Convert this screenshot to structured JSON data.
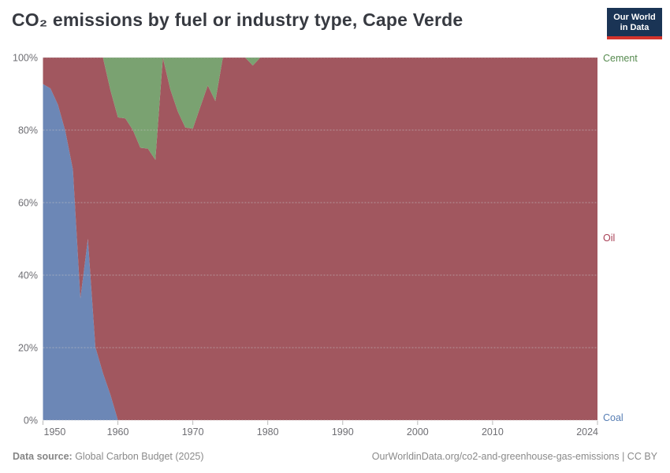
{
  "header": {
    "title": "CO₂ emissions by fuel or industry type, Cape Verde",
    "logo": {
      "line1": "Our World",
      "line2": "in Data",
      "bg_color": "#1a3455",
      "bar_color": "#d4342c"
    }
  },
  "legend": {
    "items": [
      {
        "label": "Cement",
        "label_color": "#568a4f"
      },
      {
        "label": "Oil",
        "label_color": "#a83f55"
      },
      {
        "label": "Coal",
        "label_color": "#577eb4"
      }
    ]
  },
  "footer": {
    "source_label": "Data source:",
    "source_text": " Global Carbon Budget (2025)",
    "credit_text": "OurWorldinData.org/co2-and-greenhouse-gas-emissions | CC BY"
  },
  "chart_data": {
    "type": "area",
    "stacked": true,
    "percent_stacked": true,
    "title": "CO₂ emissions by fuel or industry type, Cape Verde",
    "xlabel": "",
    "ylabel": "",
    "ylim": [
      0,
      100
    ],
    "grid": "dashed-horizontal",
    "legend_position": "right",
    "x": [
      1950,
      1951,
      1952,
      1953,
      1954,
      1955,
      1956,
      1957,
      1958,
      1959,
      1960,
      1961,
      1962,
      1963,
      1964,
      1965,
      1966,
      1967,
      1968,
      1969,
      1970,
      1971,
      1972,
      1973,
      1974,
      1975,
      1976,
      1977,
      1978,
      1979,
      1980,
      1981,
      1982,
      1983,
      1984,
      1985,
      1986,
      1987,
      1988,
      1989,
      1990,
      1991,
      1992,
      1993,
      1994,
      1995,
      1996,
      1997,
      1998,
      1999,
      2000,
      2001,
      2002,
      2003,
      2004,
      2005,
      2006,
      2007,
      2008,
      2009,
      2010,
      2011,
      2012,
      2013,
      2014,
      2015,
      2016,
      2017,
      2018,
      2019,
      2020,
      2021,
      2022,
      2023,
      2024
    ],
    "x_ticks": [
      1950,
      1960,
      1970,
      1980,
      1990,
      2000,
      2010,
      2024
    ],
    "y_ticks": [
      {
        "value": 0,
        "label": "0%"
      },
      {
        "value": 20,
        "label": "20%"
      },
      {
        "value": 40,
        "label": "40%"
      },
      {
        "value": 60,
        "label": "60%"
      },
      {
        "value": 80,
        "label": "80%"
      },
      {
        "value": 100,
        "label": "100%"
      }
    ],
    "series": [
      {
        "name": "Coal",
        "color": "#6c87b6",
        "values": [
          92.7,
          91.5,
          87,
          79.6,
          69.1,
          33.6,
          50,
          20.2,
          13,
          7,
          0,
          0,
          0,
          0,
          0,
          0,
          0,
          0,
          0,
          0,
          0,
          0,
          0,
          0,
          0,
          0,
          0,
          0,
          0,
          0,
          0,
          0,
          0,
          0,
          0,
          0,
          0,
          0,
          0,
          0,
          0,
          0,
          0,
          0,
          0,
          0,
          0,
          0,
          0,
          0,
          0,
          0,
          0,
          0,
          0,
          0,
          0,
          0,
          0,
          0,
          0,
          0,
          0,
          0,
          0,
          0,
          0,
          0,
          0,
          0,
          0,
          0,
          0,
          0,
          0
        ]
      },
      {
        "name": "Oil",
        "color": "#a1575f",
        "values": [
          7.3,
          8.5,
          13,
          20.4,
          30.9,
          66.4,
          50,
          79.8,
          87,
          84,
          83.5,
          83.2,
          80,
          75.1,
          74.9,
          71.8,
          100,
          91.2,
          85.1,
          80.7,
          80.4,
          86.4,
          92.3,
          88,
          100,
          100,
          100,
          100,
          97.8,
          100,
          100,
          100,
          100,
          100,
          100,
          100,
          100,
          100,
          100,
          100,
          100,
          100,
          100,
          100,
          100,
          100,
          100,
          100,
          100,
          100,
          100,
          100,
          100,
          100,
          100,
          100,
          100,
          100,
          100,
          100,
          100,
          100,
          100,
          100,
          100,
          100,
          100,
          100,
          100,
          100,
          100,
          100,
          100,
          100,
          100
        ]
      },
      {
        "name": "Cement",
        "color": "#7aa271",
        "values": [
          0,
          0,
          0,
          0,
          0,
          0,
          0,
          0,
          0,
          9,
          16.5,
          16.8,
          20,
          24.9,
          25.1,
          28.2,
          0,
          8.8,
          14.9,
          19.3,
          19.6,
          13.6,
          7.7,
          12,
          0,
          0,
          0,
          0,
          2.2,
          0,
          0,
          0,
          0,
          0,
          0,
          0,
          0,
          0,
          0,
          0,
          0,
          0,
          0,
          0,
          0,
          0,
          0,
          0,
          0,
          0,
          0,
          0,
          0,
          0,
          0,
          0,
          0,
          0,
          0,
          0,
          0,
          0,
          0,
          0,
          0,
          0,
          0,
          0,
          0,
          0,
          0,
          0,
          0,
          0,
          0
        ]
      }
    ]
  }
}
